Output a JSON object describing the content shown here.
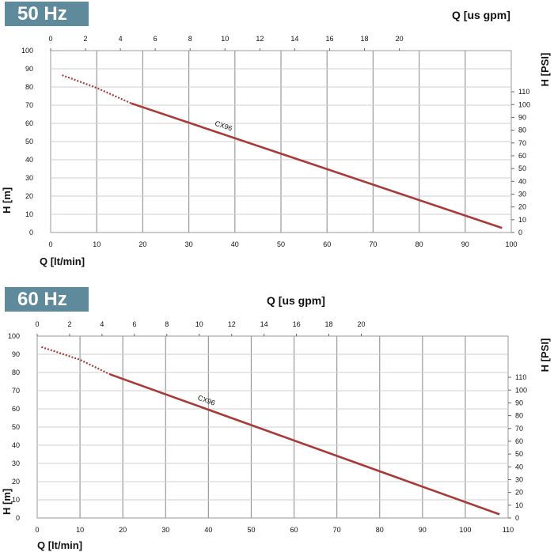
{
  "chart_data": [
    {
      "type": "line",
      "badge": "50 Hz",
      "xlabel": "Q [lt/min]",
      "ylabel": "H [m]",
      "x2label": "Q [us gpm]",
      "y2label": "H [PSI]",
      "xlim": [
        0,
        100
      ],
      "ylim": [
        0,
        100
      ],
      "x2lim": [
        0,
        26.42
      ],
      "y2lim": [
        0,
        142.2
      ],
      "xticks": [
        0,
        10,
        20,
        30,
        40,
        50,
        60,
        70,
        80,
        90,
        100
      ],
      "yticks": [
        0,
        10,
        20,
        30,
        40,
        50,
        60,
        70,
        80,
        90,
        100
      ],
      "x2ticks": [
        0,
        2,
        4,
        6,
        8,
        10,
        12,
        14,
        16,
        18,
        20
      ],
      "y2ticks": [
        0,
        10,
        20,
        30,
        40,
        50,
        60,
        70,
        80,
        90,
        100,
        110
      ],
      "grid": true,
      "series": [
        {
          "name": "CX96",
          "color": "#a83a3a",
          "dashed_x": [
            2.5,
            10,
            17.5
          ],
          "dashed_y": [
            86.5,
            79.5,
            71
          ],
          "x": [
            17.5,
            98
          ],
          "y": [
            71,
            2.5
          ]
        }
      ]
    },
    {
      "type": "line",
      "badge": "60 Hz",
      "xlabel": "Q [lt/min]",
      "ylabel": "H [m]",
      "x2label": "Q [us gpm]",
      "y2label": "H [PSI]",
      "xlim": [
        0,
        110
      ],
      "ylim": [
        0,
        100
      ],
      "x2lim": [
        0,
        29.06
      ],
      "y2lim": [
        0,
        142.2
      ],
      "xticks": [
        0,
        10,
        20,
        30,
        40,
        50,
        60,
        70,
        80,
        90,
        100,
        110
      ],
      "yticks": [
        0,
        10,
        20,
        30,
        40,
        50,
        60,
        70,
        80,
        90,
        100
      ],
      "x2ticks": [
        0,
        2,
        4,
        6,
        8,
        10,
        12,
        14,
        16,
        18,
        20
      ],
      "y2ticks": [
        0,
        10,
        20,
        30,
        40,
        50,
        60,
        70,
        80,
        90,
        100,
        110
      ],
      "grid": true,
      "series": [
        {
          "name": "CX96",
          "color": "#a83a3a",
          "dashed_x": [
            1,
            10,
            17
          ],
          "dashed_y": [
            94,
            87,
            79
          ],
          "x": [
            17,
            108
          ],
          "y": [
            79,
            2
          ]
        }
      ]
    }
  ]
}
